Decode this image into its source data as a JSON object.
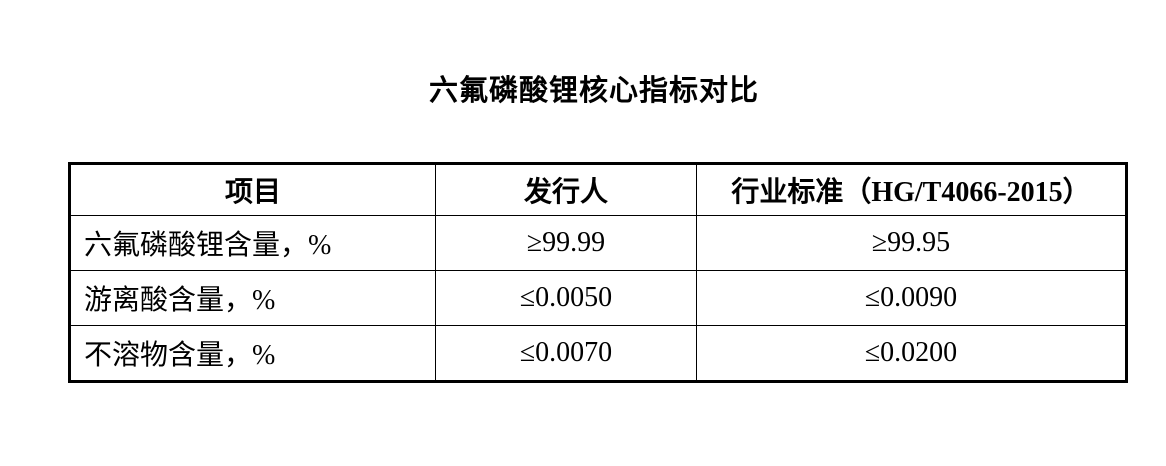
{
  "page": {
    "title": "六氟磷酸锂核心指标对比"
  },
  "table": {
    "headers": [
      "项目",
      "发行人",
      "行业标准（HG/T4066-2015）"
    ],
    "rows": [
      {
        "cells": [
          "六氟磷酸锂含量，%",
          "≥99.99",
          "≥99.95"
        ]
      },
      {
        "cells": [
          "游离酸含量，%",
          "≤0.0050",
          "≤0.0090"
        ]
      },
      {
        "cells": [
          "不溶物含量，%",
          "≤0.0070",
          "≤0.0200"
        ]
      }
    ]
  },
  "colors": {
    "text": "#000000",
    "background": "#ffffff",
    "border": "#000000"
  }
}
